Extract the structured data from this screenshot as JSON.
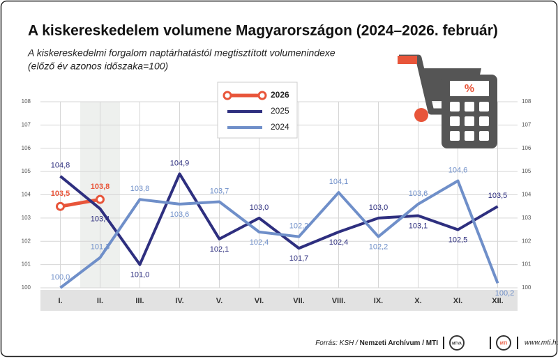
{
  "chart_data": {
    "type": "line",
    "title": "A kiskereskedelem volumene Magyarországon (2024–2026. február)",
    "subtitle": "A kiskereskedelmi forgalom naptárhatástól megtisztított volumenindexe",
    "subtitle_note": "(előző év azonos időszaka=100)",
    "categories": [
      "I.",
      "II.",
      "III.",
      "IV.",
      "V.",
      "VI.",
      "VII.",
      "VIII.",
      "IX.",
      "X.",
      "XI.",
      "XII."
    ],
    "series": [
      {
        "name": "2026",
        "color": "#e8553a",
        "values": [
          103.5,
          103.8,
          null,
          null,
          null,
          null,
          null,
          null,
          null,
          null,
          null,
          null
        ],
        "value_labels": [
          "103,5",
          "103,8",
          null,
          null,
          null,
          null,
          null,
          null,
          null,
          null,
          null,
          null
        ]
      },
      {
        "name": "2025",
        "color": "#2e2f7f",
        "values": [
          104.8,
          103.4,
          101.0,
          104.9,
          102.1,
          103.0,
          101.7,
          102.4,
          103.0,
          103.1,
          102.5,
          103.5
        ],
        "value_labels": [
          "104,8",
          "103,4",
          "101,0",
          "104,9",
          "102,1",
          "103,0",
          "101,7",
          "102,4",
          "103,0",
          "103,1",
          "102,5",
          "103,5"
        ]
      },
      {
        "name": "2024",
        "color": "#6f8fc9",
        "values": [
          100.0,
          101.3,
          103.8,
          103.6,
          103.7,
          102.4,
          102.2,
          104.1,
          102.2,
          103.6,
          104.6,
          100.2
        ],
        "value_labels": [
          "100,0",
          "101,3",
          "103,8",
          "103,6",
          "103,7",
          "102,4",
          "102,2",
          "104,1",
          "102,2",
          "103,6",
          "104,6",
          "100,2"
        ]
      }
    ],
    "ylim": [
      100,
      108
    ],
    "yticks": [
      100,
      101,
      102,
      103,
      104,
      105,
      106,
      107,
      108
    ],
    "y2lim": [
      100,
      108
    ],
    "y2ticks": [
      100,
      101,
      102,
      103,
      104,
      105,
      106,
      107,
      108
    ],
    "grid": true,
    "legend": "top",
    "icon_symbol": "%",
    "source_prefix": "Forrás: KSH /",
    "source_bold": "Nemzeti Archívum / MTI",
    "logos": [
      "MTVA",
      "MTI"
    ],
    "url": "www.mti.hu"
  }
}
